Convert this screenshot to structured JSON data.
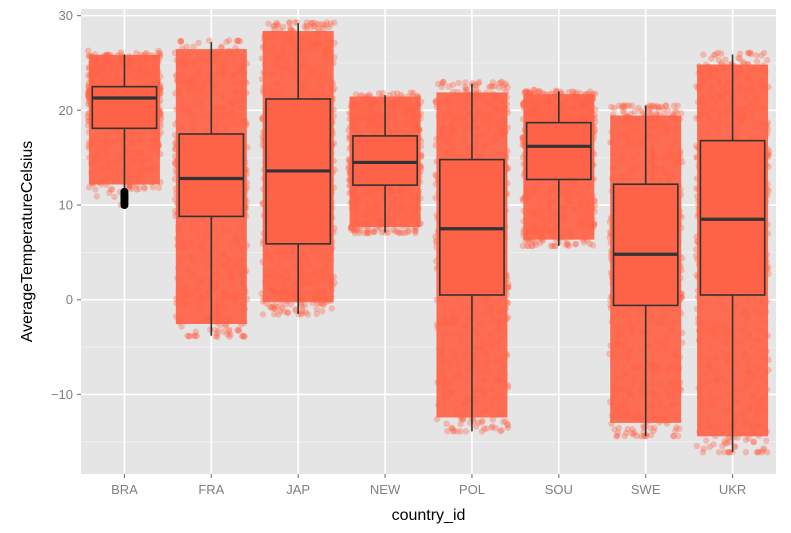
{
  "chart_data": {
    "type": "boxplot",
    "title": "",
    "xlabel": "country_id",
    "ylabel": "AverageTemperatureCelsius",
    "ylim": [
      -18.4,
      30.7
    ],
    "yticks": [
      -10,
      0,
      10,
      20,
      30
    ],
    "ytick_labels": [
      "−10",
      "0",
      "10",
      "20",
      "30"
    ],
    "grid": true,
    "overlay": "jittered points (alpha)",
    "categories": [
      "BRA",
      "FRA",
      "JAP",
      "NEW",
      "POL",
      "SOU",
      "SWE",
      "UKR"
    ],
    "series": [
      {
        "name": "BRA",
        "whisker_low": 11.6,
        "q1": 18.1,
        "median": 21.3,
        "q3": 22.5,
        "whisker_high": 25.9,
        "point_min": 10.0,
        "point_max": 26.3,
        "outliers": [
          10.0,
          10.2,
          10.4,
          10.6,
          10.8,
          11.0,
          11.2,
          11.4
        ]
      },
      {
        "name": "FRA",
        "whisker_low": -3.8,
        "q1": 8.8,
        "median": 12.8,
        "q3": 17.5,
        "whisker_high": 27.2,
        "point_min": -3.9,
        "point_max": 27.4,
        "outliers": []
      },
      {
        "name": "JAP",
        "whisker_low": -1.5,
        "q1": 5.9,
        "median": 13.6,
        "q3": 21.2,
        "whisker_high": 29.2,
        "point_min": -1.6,
        "point_max": 29.3,
        "outliers": []
      },
      {
        "name": "NEW",
        "whisker_low": 7.1,
        "q1": 12.1,
        "median": 14.5,
        "q3": 17.3,
        "whisker_high": 21.6,
        "point_min": 7.0,
        "point_max": 21.9,
        "outliers": []
      },
      {
        "name": "POL",
        "whisker_low": -13.9,
        "q1": 0.5,
        "median": 7.5,
        "q3": 14.8,
        "whisker_high": 22.8,
        "point_min": -13.9,
        "point_max": 23.0,
        "outliers": []
      },
      {
        "name": "SOU",
        "whisker_low": 5.7,
        "q1": 12.7,
        "median": 16.2,
        "q3": 18.7,
        "whisker_high": 22.0,
        "point_min": 5.7,
        "point_max": 22.2,
        "outliers": []
      },
      {
        "name": "SWE",
        "whisker_low": -14.4,
        "q1": -0.6,
        "median": 4.8,
        "q3": 12.2,
        "whisker_high": 20.5,
        "point_min": -14.4,
        "point_max": 20.5,
        "outliers": []
      },
      {
        "name": "UKR",
        "whisker_low": -16.1,
        "q1": 0.5,
        "median": 8.5,
        "q3": 16.8,
        "whisker_high": 25.9,
        "point_min": -16.1,
        "point_max": 26.1,
        "outliers": []
      }
    ],
    "colors": {
      "box_fill": "#FF6347",
      "point": "#FF6347",
      "box_line": "#333333",
      "outlier": "#000000",
      "panel_bg": "#E5E5E5",
      "grid": "#FFFFFF",
      "tick_text": "#7F7F7F"
    }
  }
}
